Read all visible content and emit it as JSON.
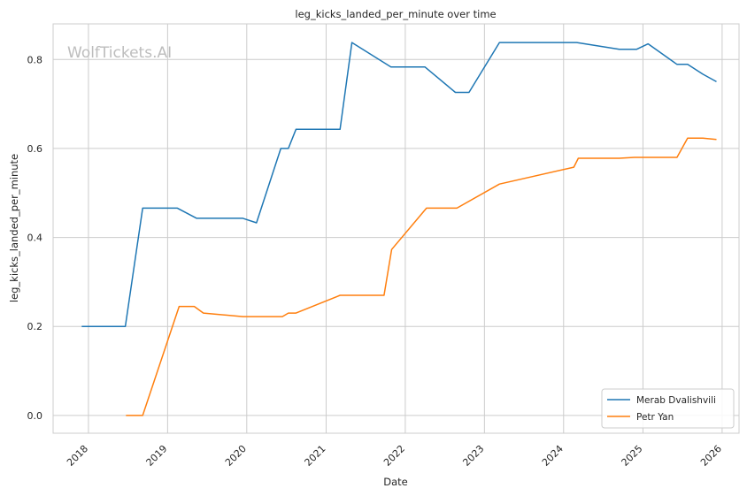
{
  "chart_data": {
    "type": "line",
    "title": "leg_kicks_landed_per_minute over time",
    "xlabel": "Date",
    "ylabel": "leg_kicks_landed_per_minute",
    "watermark": "WolfTickets.AI",
    "x_ticks": [
      "2018",
      "2019",
      "2020",
      "2021",
      "2022",
      "2023",
      "2024",
      "2025",
      "2026"
    ],
    "y_ticks": [
      "0.0",
      "0.2",
      "0.4",
      "0.6",
      "0.8"
    ],
    "xlim": [
      "2017-07-22",
      "2026-03-20"
    ],
    "ylim": [
      -0.04,
      0.88
    ],
    "grid": true,
    "legend_position": "lower-right",
    "series": [
      {
        "name": "Merab Dvalishvili",
        "color": "#1f77b4",
        "points": [
          [
            "2017-12-01",
            0.2
          ],
          [
            "2018-06-20",
            0.2
          ],
          [
            "2018-09-08",
            0.466
          ],
          [
            "2019-02-15",
            0.466
          ],
          [
            "2019-05-15",
            0.443
          ],
          [
            "2019-12-14",
            0.443
          ],
          [
            "2020-02-15",
            0.433
          ],
          [
            "2020-06-06",
            0.6
          ],
          [
            "2020-07-11",
            0.6
          ],
          [
            "2020-08-15",
            0.643
          ],
          [
            "2021-03-06",
            0.643
          ],
          [
            "2021-04-30",
            0.838
          ],
          [
            "2021-10-27",
            0.783
          ],
          [
            "2022-04-02",
            0.783
          ],
          [
            "2022-08-20",
            0.726
          ],
          [
            "2022-10-22",
            0.726
          ],
          [
            "2023-03-11",
            0.838
          ],
          [
            "2024-03-02",
            0.838
          ],
          [
            "2024-09-14",
            0.823
          ],
          [
            "2024-12-03",
            0.823
          ],
          [
            "2025-01-25",
            0.835
          ],
          [
            "2025-06-07",
            0.789
          ],
          [
            "2025-07-26",
            0.789
          ],
          [
            "2025-10-04",
            0.767
          ],
          [
            "2025-12-06",
            0.75
          ]
        ]
      },
      {
        "name": "Petr Yan",
        "color": "#ff7f0e",
        "points": [
          [
            "2018-06-23",
            0.0
          ],
          [
            "2018-09-08",
            0.0
          ],
          [
            "2019-02-23",
            0.245
          ],
          [
            "2019-05-04",
            0.245
          ],
          [
            "2019-06-15",
            0.23
          ],
          [
            "2019-12-14",
            0.222
          ],
          [
            "2020-06-13",
            0.222
          ],
          [
            "2020-07-11",
            0.23
          ],
          [
            "2020-08-15",
            0.23
          ],
          [
            "2021-03-06",
            0.27
          ],
          [
            "2021-09-25",
            0.27
          ],
          [
            "2021-10-30",
            0.373
          ],
          [
            "2022-04-09",
            0.466
          ],
          [
            "2022-08-27",
            0.466
          ],
          [
            "2023-03-11",
            0.52
          ],
          [
            "2024-02-17",
            0.558
          ],
          [
            "2024-03-09",
            0.578
          ],
          [
            "2024-09-14",
            0.578
          ],
          [
            "2024-11-23",
            0.58
          ],
          [
            "2025-06-07",
            0.58
          ],
          [
            "2025-07-26",
            0.623
          ],
          [
            "2025-10-04",
            0.623
          ],
          [
            "2025-12-06",
            0.62
          ]
        ]
      }
    ]
  }
}
